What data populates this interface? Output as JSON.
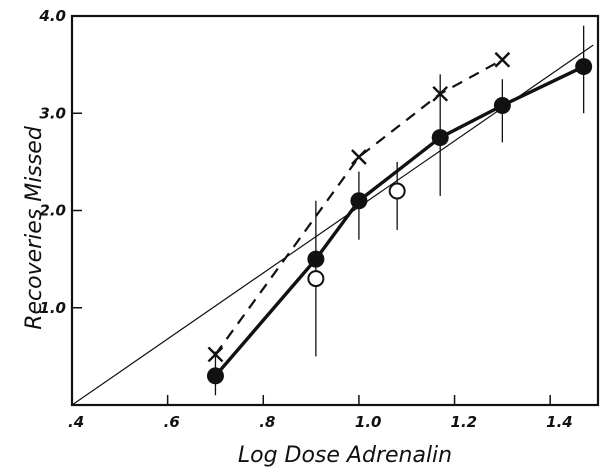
{
  "chart_data": {
    "type": "line",
    "title": "",
    "xlabel": "Log Dose Adrenalin",
    "ylabel": "Recoveries Missed",
    "xlim": [
      0.4,
      1.5
    ],
    "ylim": [
      0.0,
      4.0
    ],
    "x_ticks": [
      {
        "value": 0.4,
        "label": ".4"
      },
      {
        "value": 0.6,
        "label": ".6"
      },
      {
        "value": 0.8,
        "label": ".8"
      },
      {
        "value": 1.0,
        "label": "1.0"
      },
      {
        "value": 1.2,
        "label": "1.2"
      },
      {
        "value": 1.4,
        "label": "1.4"
      }
    ],
    "y_ticks": [
      {
        "value": 1.0,
        "label": "1.0"
      },
      {
        "value": 2.0,
        "label": "2.0"
      },
      {
        "value": 3.0,
        "label": "3.0"
      },
      {
        "value": 4.0,
        "label": "4.0"
      }
    ],
    "grid": false,
    "legend": "none",
    "series": [
      {
        "style": "thick-solid-filled-circles",
        "x": [
          0.7,
          0.91,
          1.0,
          1.17,
          1.3,
          1.47
        ],
        "y": [
          0.3,
          1.5,
          2.1,
          2.75,
          3.08,
          3.48
        ],
        "error_bars": [
          {
            "x": 0.7,
            "low": 0.1,
            "high": 0.55
          },
          {
            "x": 0.91,
            "low": 0.5,
            "high": 2.1
          },
          {
            "x": 1.0,
            "low": 1.7,
            "high": 2.4
          },
          {
            "x": 1.17,
            "low": 2.15,
            "high": 3.4
          },
          {
            "x": 1.3,
            "low": 2.7,
            "high": 3.35
          },
          {
            "x": 1.47,
            "low": 3.0,
            "high": 3.9
          }
        ]
      },
      {
        "style": "dashed-crosses",
        "x": [
          0.7,
          1.0,
          1.17,
          1.3
        ],
        "y": [
          0.52,
          2.55,
          3.2,
          3.55
        ]
      },
      {
        "style": "open-circles",
        "x": [
          0.91,
          1.08
        ],
        "y": [
          1.3,
          2.2
        ],
        "error_bars": [
          {
            "x": 1.08,
            "low": 1.8,
            "high": 2.5
          }
        ]
      },
      {
        "style": "thin-straight-fit",
        "x": [
          0.4,
          1.49
        ],
        "y": [
          0.0,
          3.7
        ]
      }
    ],
    "colors": {
      "ink": "#111111",
      "background": "#ffffff"
    }
  }
}
